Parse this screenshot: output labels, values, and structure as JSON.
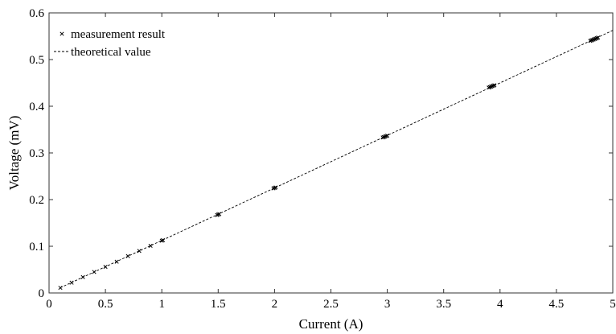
{
  "chart_data": {
    "type": "scatter",
    "title": "",
    "xlabel": "Current (A)",
    "ylabel": "Voltage (mV)",
    "xlim": [
      0,
      5
    ],
    "ylim": [
      0,
      0.6
    ],
    "x_ticks": [
      "0",
      "0.5",
      "1",
      "1.5",
      "2",
      "2.5",
      "3",
      "3.5",
      "4",
      "4.5",
      "5"
    ],
    "y_ticks": [
      "0",
      "0.1",
      "0.2",
      "0.3",
      "0.4",
      "0.5",
      "0.6"
    ],
    "grid": false,
    "legend_position": "top-left",
    "series": [
      {
        "name": "measurement result",
        "style": "x-marker",
        "color": "#000000",
        "x": [
          0.1,
          0.2,
          0.3,
          0.4,
          0.5,
          0.6,
          0.7,
          0.8,
          0.9,
          1.0,
          1.01,
          1.49,
          1.5,
          1.51,
          1.99,
          2.0,
          2.01,
          2.96,
          2.97,
          2.98,
          2.99,
          3.0,
          3.9,
          3.91,
          3.92,
          3.93,
          3.94,
          3.95,
          4.8,
          4.81,
          4.82,
          4.83,
          4.84,
          4.85,
          4.86,
          4.87
        ],
        "y": [
          0.011,
          0.022,
          0.034,
          0.045,
          0.056,
          0.067,
          0.079,
          0.09,
          0.101,
          0.112,
          0.113,
          0.167,
          0.168,
          0.169,
          0.224,
          0.225,
          0.226,
          0.333,
          0.334,
          0.335,
          0.336,
          0.337,
          0.44,
          0.441,
          0.442,
          0.443,
          0.444,
          0.445,
          0.54,
          0.541,
          0.542,
          0.543,
          0.544,
          0.545,
          0.546,
          0.547
        ]
      },
      {
        "name": "theoretical value",
        "style": "dashed-line",
        "color": "#000000",
        "x": [
          0.1,
          5
        ],
        "y": [
          0.0112,
          0.5625
        ]
      }
    ]
  }
}
